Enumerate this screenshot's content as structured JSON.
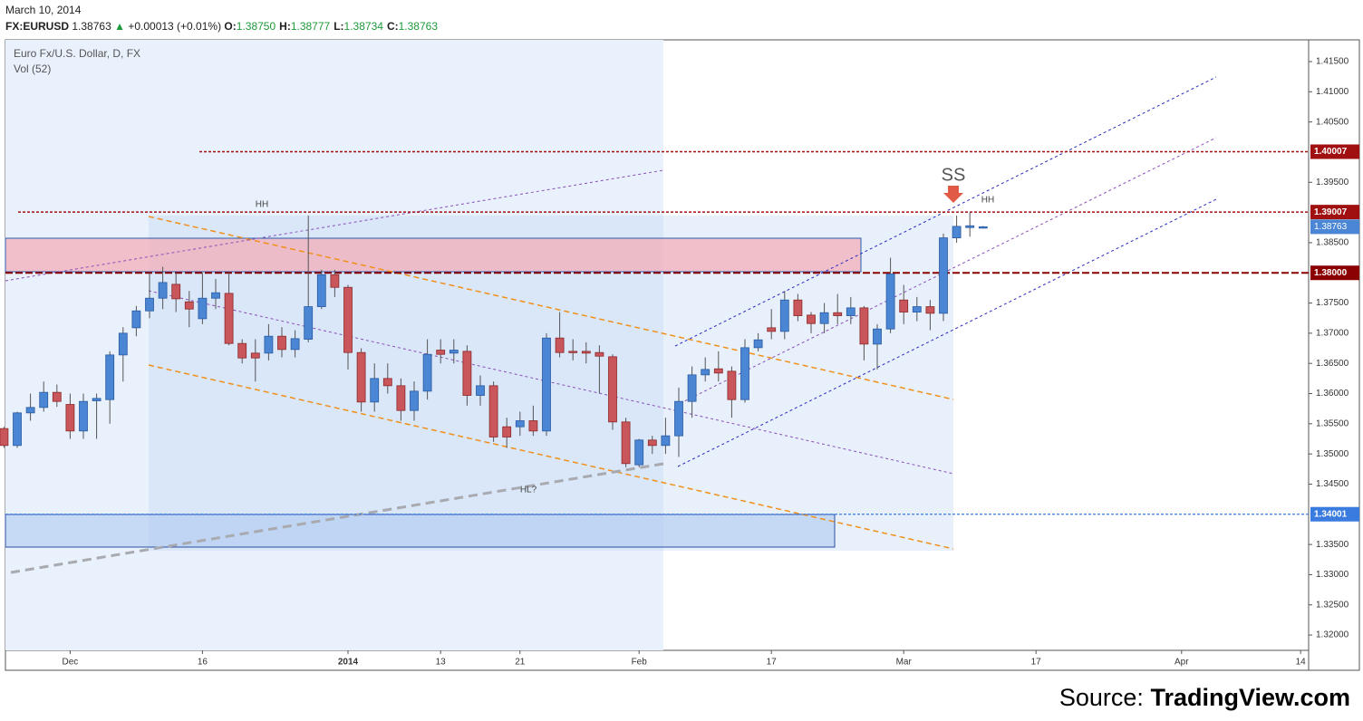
{
  "header": {
    "date": "March 10, 2014",
    "symbol": "FX:EURUSD",
    "last": "1.38763",
    "arrow": "▲",
    "change": "+0.00013 (+0.01%)",
    "ohlc": [
      {
        "label": "O:",
        "value": "1.38750"
      },
      {
        "label": "H:",
        "value": "1.38777"
      },
      {
        "label": "L:",
        "value": "1.38734"
      },
      {
        "label": "C:",
        "value": "1.38763"
      }
    ]
  },
  "source": {
    "prefix": "Source:",
    "name": "TradingView.com"
  },
  "chart_data": {
    "type": "candlestick",
    "title": "Euro Fx/U.S. Dollar, D, FX",
    "subtitle": "Vol (52)",
    "categories": [
      null,
      null,
      null,
      null,
      null,
      "Dec",
      null,
      null,
      null,
      null,
      null,
      null,
      null,
      null,
      null,
      "16",
      null,
      null,
      null,
      null,
      null,
      null,
      null,
      null,
      null,
      null,
      "2014",
      null,
      null,
      null,
      null,
      null,
      null,
      "13",
      null,
      null,
      null,
      null,
      null,
      "21",
      null,
      null,
      null,
      null,
      null,
      null,
      null,
      null,
      "Feb",
      null,
      null,
      null,
      null,
      null,
      null,
      null,
      null,
      null,
      "17",
      null,
      null,
      null,
      null,
      null,
      null,
      null,
      null,
      null,
      "Mar",
      null,
      null,
      null,
      null,
      null,
      null,
      null,
      null,
      null,
      "17",
      null,
      null,
      null,
      null,
      null,
      null,
      null,
      null,
      null,
      null,
      "Apr",
      null,
      null,
      null,
      null,
      null,
      null,
      null,
      null,
      "14"
    ],
    "open": [
      1.3542,
      1.3514,
      1.3568,
      1.3577,
      1.3602,
      1.3582,
      1.3538,
      1.3588,
      1.359,
      1.3664,
      1.3709,
      1.3737,
      1.3758,
      1.3781,
      1.3752,
      1.3724,
      1.3758,
      1.3766,
      1.3683,
      1.3667,
      1.3667,
      1.3695,
      1.3673,
      1.369,
      1.3744,
      1.3797,
      1.3776,
      1.3668,
      1.3586,
      1.3625,
      1.3613,
      1.3572,
      1.3604,
      1.3672,
      1.3667,
      1.367,
      1.3597,
      1.3613,
      1.3545,
      1.3545,
      1.3555,
      1.3538,
      1.3692,
      1.367,
      1.367,
      1.3668,
      1.3661,
      1.3553,
      1.3482,
      1.3523,
      1.3514,
      1.353,
      1.3587,
      1.3631,
      1.3641,
      1.3637,
      1.359,
      1.3676,
      1.3709,
      1.3703,
      1.3755,
      1.373,
      1.3716,
      1.3734,
      1.3729,
      1.3742,
      1.3682,
      1.3707,
      1.3755,
      1.3735,
      1.3744,
      1.3733,
      1.3858,
      1.3875,
      1.3875,
      null,
      null,
      null,
      null,
      null,
      null,
      null,
      null,
      null,
      null,
      null,
      null,
      null,
      null,
      null,
      null,
      null,
      null,
      null,
      null,
      null,
      null,
      null,
      null
    ],
    "high": [
      1.3545,
      1.357,
      1.36,
      1.362,
      1.3615,
      1.36,
      1.36,
      1.36,
      1.367,
      1.371,
      1.3745,
      1.38,
      1.381,
      1.38,
      1.377,
      1.38,
      1.379,
      1.38,
      1.369,
      1.369,
      1.3715,
      1.371,
      1.3705,
      1.3895,
      1.3805,
      1.3805,
      1.378,
      1.3675,
      1.365,
      1.365,
      1.3625,
      1.362,
      1.369,
      1.369,
      1.369,
      1.368,
      1.363,
      1.362,
      1.356,
      1.357,
      1.358,
      1.37,
      1.3735,
      1.369,
      1.3685,
      1.368,
      1.3665,
      1.356,
      1.3525,
      1.353,
      1.356,
      1.361,
      1.3645,
      1.366,
      1.367,
      1.3645,
      1.369,
      1.37,
      1.374,
      1.377,
      1.3765,
      1.3735,
      1.375,
      1.3765,
      1.376,
      1.3745,
      1.3715,
      1.3825,
      1.378,
      1.376,
      1.3755,
      1.3865,
      1.3895,
      1.39,
      1.38777,
      null,
      null,
      null,
      null,
      null,
      null,
      null,
      null,
      null,
      null,
      null,
      null,
      null,
      null,
      null,
      null,
      null,
      null,
      null,
      null,
      null,
      null,
      null,
      null
    ],
    "low": [
      1.351,
      1.351,
      1.3555,
      1.357,
      1.3578,
      1.3525,
      1.3525,
      1.3525,
      1.355,
      1.362,
      1.3695,
      1.3725,
      1.374,
      1.3735,
      1.371,
      1.3715,
      1.374,
      1.368,
      1.365,
      1.362,
      1.3655,
      1.366,
      1.366,
      1.3685,
      1.374,
      1.376,
      1.364,
      1.357,
      1.357,
      1.36,
      1.3555,
      1.3555,
      1.359,
      1.365,
      1.365,
      1.358,
      1.358,
      1.352,
      1.351,
      1.353,
      1.353,
      1.353,
      1.366,
      1.3655,
      1.365,
      1.36,
      1.354,
      1.3478,
      1.3478,
      1.35,
      1.35,
      1.3495,
      1.356,
      1.362,
      1.362,
      1.356,
      1.3585,
      1.367,
      1.369,
      1.369,
      1.372,
      1.37,
      1.37,
      1.3715,
      1.3715,
      1.3655,
      1.364,
      1.37,
      1.3715,
      1.372,
      1.3705,
      1.372,
      1.385,
      1.386,
      1.38734,
      null,
      null,
      null,
      null,
      null,
      null,
      null,
      null,
      null,
      null,
      null,
      null,
      null,
      null,
      null,
      null,
      null,
      null,
      null,
      null,
      null,
      null,
      null,
      null
    ],
    "close": [
      1.3514,
      1.3568,
      1.3577,
      1.3602,
      1.3587,
      1.3538,
      1.3587,
      1.3592,
      1.3664,
      1.37,
      1.3737,
      1.3758,
      1.3784,
      1.3757,
      1.374,
      1.3758,
      1.3767,
      1.3683,
      1.3659,
      1.3659,
      1.3695,
      1.3673,
      1.3691,
      1.3744,
      1.3797,
      1.3776,
      1.3668,
      1.3586,
      1.3625,
      1.3613,
      1.3572,
      1.3604,
      1.3665,
      1.3665,
      1.3672,
      1.3597,
      1.3613,
      1.3528,
      1.3528,
      1.3555,
      1.3538,
      1.3692,
      1.3668,
      1.3668,
      1.3667,
      1.3662,
      1.3553,
      1.3484,
      1.3523,
      1.3514,
      1.353,
      1.3587,
      1.3631,
      1.364,
      1.3634,
      1.359,
      1.3676,
      1.3689,
      1.3703,
      1.3755,
      1.3729,
      1.3716,
      1.3734,
      1.3729,
      1.3742,
      1.3682,
      1.3707,
      1.3798,
      1.3735,
      1.3744,
      1.3733,
      1.3858,
      1.3877,
      1.3878,
      1.38763,
      null,
      null,
      null,
      null,
      null,
      null,
      null,
      null,
      null,
      null,
      null,
      null,
      null,
      null,
      null,
      null,
      null,
      null,
      null,
      null,
      null,
      null,
      null,
      null
    ],
    "up_color": "#4a86d4",
    "down_color": "#c9565a",
    "ylim": [
      1.31746,
      1.4186
    ],
    "yticks": [
      {
        "value": 1.32,
        "label": "1.32000"
      },
      {
        "value": 1.325,
        "label": "1.32500"
      },
      {
        "value": 1.33,
        "label": "1.33000"
      },
      {
        "value": 1.335,
        "label": "1.33500"
      },
      {
        "value": 1.345,
        "label": "1.34500"
      },
      {
        "value": 1.35,
        "label": "1.35000"
      },
      {
        "value": 1.355,
        "label": "1.35500"
      },
      {
        "value": 1.36,
        "label": "1.36000"
      },
      {
        "value": 1.365,
        "label": "1.36500"
      },
      {
        "value": 1.37,
        "label": "1.37000"
      },
      {
        "value": 1.375,
        "label": "1.37500"
      },
      {
        "value": 1.385,
        "label": "1.38500"
      },
      {
        "value": 1.395,
        "label": "1.39500"
      },
      {
        "value": 1.405,
        "label": "1.40500"
      },
      {
        "value": 1.41,
        "label": "1.41000"
      },
      {
        "value": 1.415,
        "label": "1.41500"
      }
    ],
    "levels": [
      {
        "value": 1.40007,
        "label": "1.40007",
        "color": "#a01010"
      },
      {
        "value": 1.39007,
        "label": "1.39007",
        "color": "#a01010"
      },
      {
        "value": 1.38,
        "label": "1.38000",
        "color": "#8b0000"
      },
      {
        "value": 1.34001,
        "label": "1.34001",
        "color": "#3a7be0"
      }
    ],
    "last_price": {
      "value": 1.38763,
      "label": "1.38763",
      "color": "#4a86d4"
    },
    "annotations": [
      "HH",
      "SS",
      "HH",
      "HL?"
    ]
  }
}
